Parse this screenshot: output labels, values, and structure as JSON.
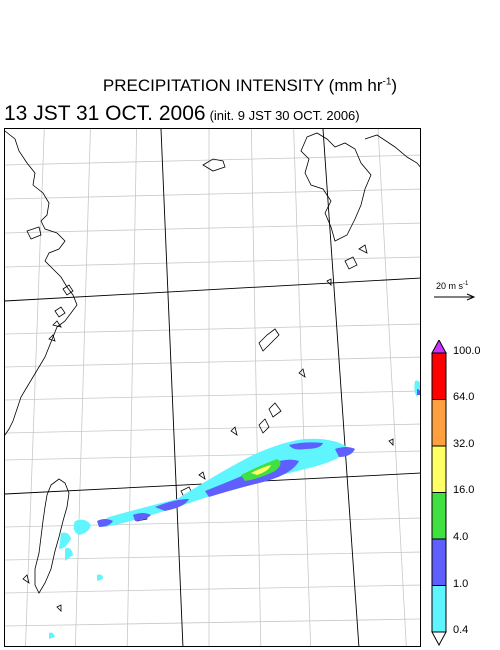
{
  "title": {
    "main": "PRECIPITATION INTENSITY (mm hr",
    "exponent": "-1",
    "close": ")"
  },
  "subtitle": {
    "time": "13 JST 31 OCT. 2006",
    "init": "(init. 9 JST 30 OCT. 2006)"
  },
  "vector_reference": {
    "label": "20 m s",
    "exponent": "-1"
  },
  "colorbar": {
    "labels": [
      "100.0",
      "64.0",
      "32.0",
      "16.0",
      "4.0",
      "1.0",
      "0.4"
    ],
    "colors": [
      "#ff0000",
      "#ffa040",
      "#ffff66",
      "#40e040",
      "#5f5fff",
      "#5ff5ff"
    ],
    "over_color": "#cc33ff",
    "under_color": "#ffffff"
  }
}
